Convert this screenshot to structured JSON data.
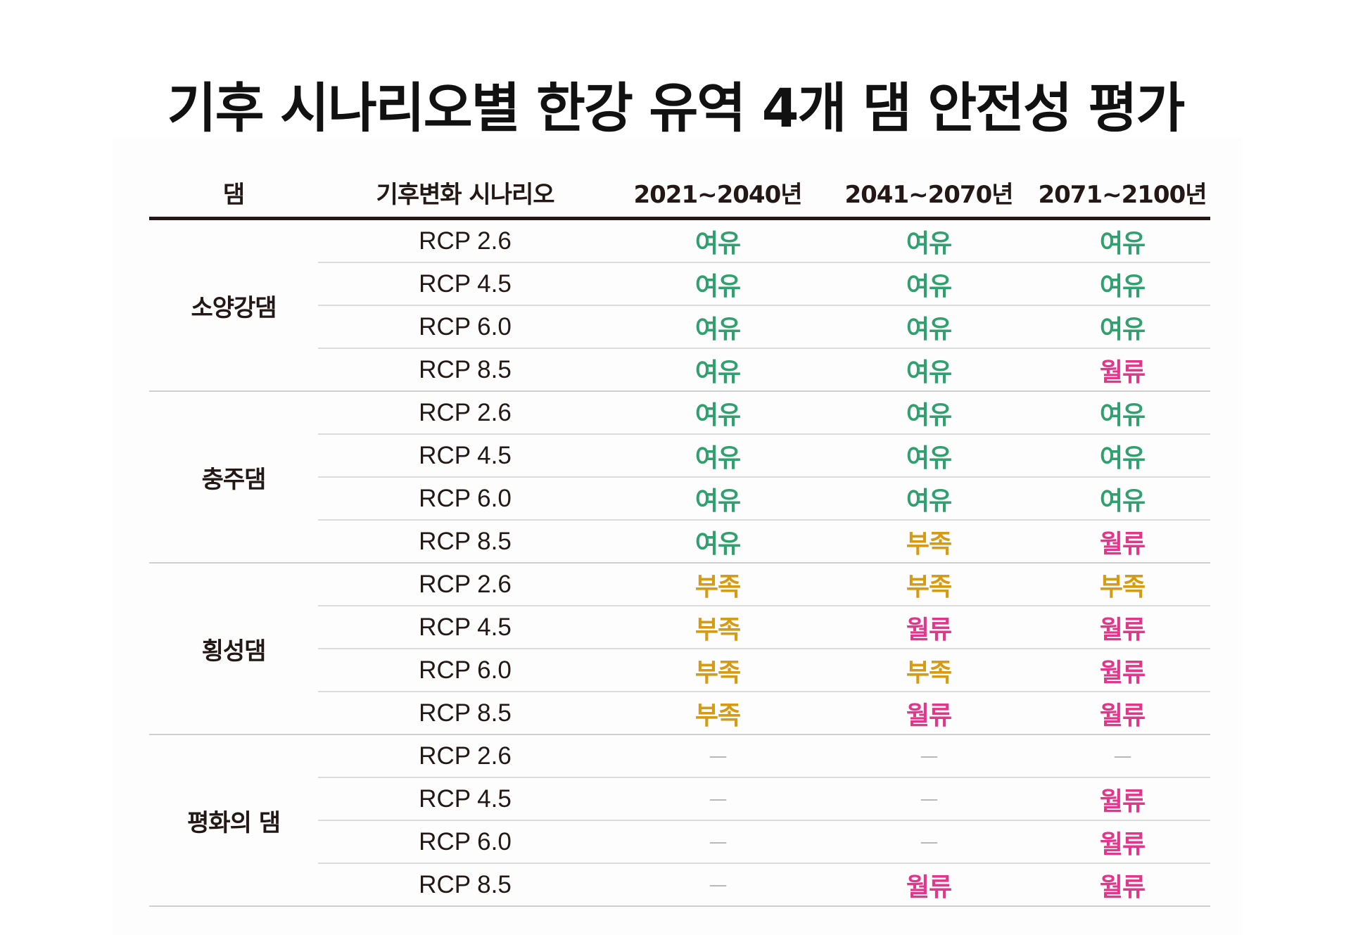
{
  "title": "기후 시나리오별 한강 유역 4개 댐 안전성 평가",
  "colors": {
    "여유": "#2fa06e",
    "부족": "#d69b14",
    "월류": "#e0378a",
    "—": "#b5b5b5"
  },
  "chart_data": {
    "type": "table",
    "columns": [
      "댐",
      "기후변화 시나리오",
      "2021~2040년",
      "2041~2070년",
      "2071~2100년"
    ],
    "groups": [
      {
        "dam": "소양강댐",
        "rows": [
          {
            "scenario": "RCP 2.6",
            "values": [
              "여유",
              "여유",
              "여유"
            ]
          },
          {
            "scenario": "RCP 4.5",
            "values": [
              "여유",
              "여유",
              "여유"
            ]
          },
          {
            "scenario": "RCP 6.0",
            "values": [
              "여유",
              "여유",
              "여유"
            ]
          },
          {
            "scenario": "RCP 8.5",
            "values": [
              "여유",
              "여유",
              "월류"
            ]
          }
        ]
      },
      {
        "dam": "충주댐",
        "rows": [
          {
            "scenario": "RCP 2.6",
            "values": [
              "여유",
              "여유",
              "여유"
            ]
          },
          {
            "scenario": "RCP 4.5",
            "values": [
              "여유",
              "여유",
              "여유"
            ]
          },
          {
            "scenario": "RCP 6.0",
            "values": [
              "여유",
              "여유",
              "여유"
            ]
          },
          {
            "scenario": "RCP 8.5",
            "values": [
              "여유",
              "부족",
              "월류"
            ]
          }
        ]
      },
      {
        "dam": "횡성댐",
        "rows": [
          {
            "scenario": "RCP 2.6",
            "values": [
              "부족",
              "부족",
              "부족"
            ]
          },
          {
            "scenario": "RCP 4.5",
            "values": [
              "부족",
              "월류",
              "월류"
            ]
          },
          {
            "scenario": "RCP 6.0",
            "values": [
              "부족",
              "부족",
              "월류"
            ]
          },
          {
            "scenario": "RCP 8.5",
            "values": [
              "부족",
              "월류",
              "월류"
            ]
          }
        ]
      },
      {
        "dam": "평화의 댐",
        "rows": [
          {
            "scenario": "RCP 2.6",
            "values": [
              "—",
              "—",
              "—"
            ]
          },
          {
            "scenario": "RCP 4.5",
            "values": [
              "—",
              "—",
              "월류"
            ]
          },
          {
            "scenario": "RCP 6.0",
            "values": [
              "—",
              "—",
              "월류"
            ]
          },
          {
            "scenario": "RCP 8.5",
            "values": [
              "—",
              "월류",
              "월류"
            ]
          }
        ]
      }
    ]
  }
}
